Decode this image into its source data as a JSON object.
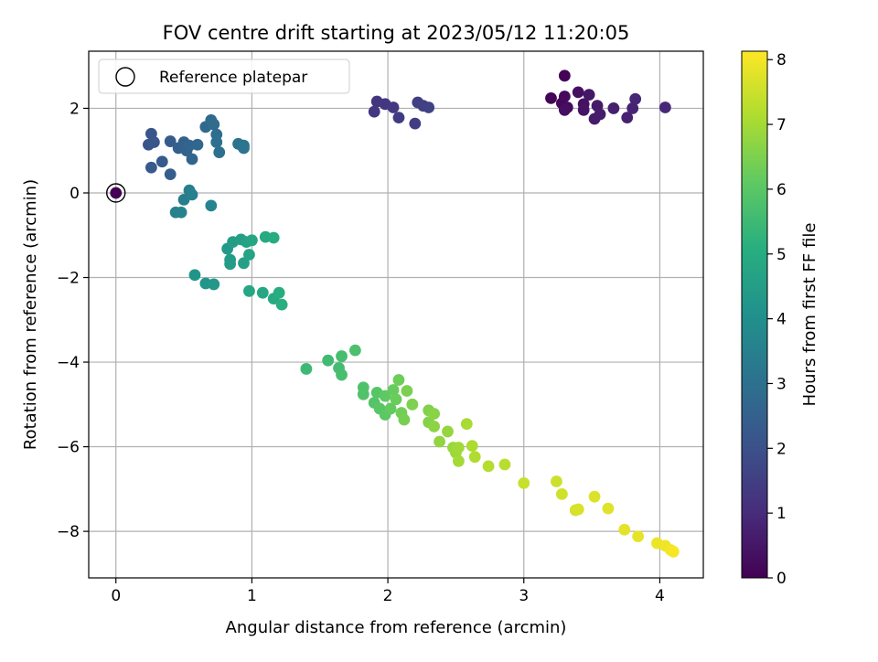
{
  "chart_data": {
    "type": "scatter",
    "title": "FOV centre drift starting at 2023/05/12 11:20:05",
    "xlabel": "Angular distance from reference (arcmin)",
    "ylabel": "Rotation from reference (arcmin)",
    "xlim": [
      -0.2,
      4.32
    ],
    "ylim": [
      -9.1,
      3.35
    ],
    "xticks": [
      "0",
      "1",
      "2",
      "3",
      "4"
    ],
    "yticks": [
      "2",
      "0",
      "−2",
      "−4",
      "−6",
      "−8"
    ],
    "grid": true,
    "legend": {
      "placement": "top-left",
      "entries": [
        "Reference platepar"
      ]
    },
    "colorbar": {
      "label": "Hours from first FF file",
      "range": [
        0,
        8.13
      ],
      "ticks": [
        "0",
        "1",
        "2",
        "3",
        "4",
        "5",
        "6",
        "7",
        "8"
      ],
      "colormap": "viridis"
    },
    "reference_point": {
      "x": 0,
      "y": 0
    },
    "points": [
      [
        3.3,
        2.77,
        0.05
      ],
      [
        3.2,
        2.24,
        0.1
      ],
      [
        3.28,
        2.12,
        0.15
      ],
      [
        3.3,
        2.28,
        0.2
      ],
      [
        3.32,
        2.02,
        0.25
      ],
      [
        3.3,
        1.96,
        0.3
      ],
      [
        3.4,
        2.38,
        0.35
      ],
      [
        3.44,
        2.1,
        0.4
      ],
      [
        3.44,
        1.96,
        0.45
      ],
      [
        3.48,
        2.32,
        0.5
      ],
      [
        3.54,
        2.06,
        0.55
      ],
      [
        3.52,
        1.75,
        0.6
      ],
      [
        3.56,
        1.86,
        0.65
      ],
      [
        3.66,
        2.0,
        0.7
      ],
      [
        3.76,
        1.78,
        0.75
      ],
      [
        3.8,
        2.0,
        0.8
      ],
      [
        3.82,
        2.22,
        0.85
      ],
      [
        4.04,
        2.02,
        0.9
      ],
      [
        1.92,
        2.16,
        1.2
      ],
      [
        1.9,
        1.92,
        1.25
      ],
      [
        1.98,
        2.1,
        1.3
      ],
      [
        2.04,
        2.02,
        1.35
      ],
      [
        2.08,
        1.78,
        1.4
      ],
      [
        2.2,
        1.64,
        1.45
      ],
      [
        2.22,
        2.14,
        1.5
      ],
      [
        2.26,
        2.06,
        1.55
      ],
      [
        2.3,
        2.02,
        1.6
      ],
      [
        0.24,
        1.14,
        2.1
      ],
      [
        0.26,
        1.4,
        2.15
      ],
      [
        0.28,
        1.2,
        2.2
      ],
      [
        0.26,
        0.6,
        2.25
      ],
      [
        0.34,
        0.74,
        2.3
      ],
      [
        0.4,
        1.22,
        2.35
      ],
      [
        0.4,
        0.44,
        2.4
      ],
      [
        0.46,
        1.06,
        2.45
      ],
      [
        0.5,
        1.2,
        2.5
      ],
      [
        0.52,
        1.0,
        2.55
      ],
      [
        0.54,
        1.12,
        2.6
      ],
      [
        0.56,
        0.8,
        2.65
      ],
      [
        0.6,
        1.14,
        2.7
      ],
      [
        0.66,
        1.56,
        2.75
      ],
      [
        0.7,
        1.72,
        2.8
      ],
      [
        0.72,
        1.62,
        2.85
      ],
      [
        0.74,
        1.38,
        2.9
      ],
      [
        0.74,
        1.2,
        2.95
      ],
      [
        0.76,
        0.96,
        3.0
      ],
      [
        0.9,
        1.16,
        3.05
      ],
      [
        0.94,
        1.12,
        3.1
      ],
      [
        0.94,
        1.06,
        3.15
      ],
      [
        0.5,
        -0.16,
        3.4
      ],
      [
        0.54,
        0.06,
        3.45
      ],
      [
        0.56,
        -0.04,
        3.5
      ],
      [
        0.44,
        -0.46,
        3.55
      ],
      [
        0.48,
        -0.46,
        3.6
      ],
      [
        0.7,
        -0.3,
        3.65
      ],
      [
        0.58,
        -1.94,
        4.2
      ],
      [
        0.66,
        -2.14,
        4.25
      ],
      [
        0.72,
        -2.16,
        4.3
      ],
      [
        0.82,
        -1.32,
        4.35
      ],
      [
        0.84,
        -1.58,
        4.4
      ],
      [
        0.84,
        -1.68,
        4.45
      ],
      [
        0.86,
        -1.16,
        4.5
      ],
      [
        0.92,
        -1.1,
        4.55
      ],
      [
        0.94,
        -1.66,
        4.6
      ],
      [
        0.96,
        -1.16,
        4.65
      ],
      [
        0.98,
        -1.46,
        4.7
      ],
      [
        1.0,
        -1.12,
        4.75
      ],
      [
        0.98,
        -2.32,
        4.8
      ],
      [
        1.08,
        -2.36,
        4.85
      ],
      [
        1.1,
        -1.04,
        4.9
      ],
      [
        1.16,
        -2.5,
        4.95
      ],
      [
        1.16,
        -1.06,
        5.0
      ],
      [
        1.2,
        -2.36,
        5.05
      ],
      [
        1.22,
        -2.64,
        5.1
      ],
      [
        1.4,
        -4.16,
        5.5
      ],
      [
        1.56,
        -3.96,
        5.55
      ],
      [
        1.64,
        -4.14,
        5.6
      ],
      [
        1.66,
        -3.86,
        5.65
      ],
      [
        1.66,
        -4.3,
        5.7
      ],
      [
        1.76,
        -3.72,
        5.75
      ],
      [
        1.82,
        -4.6,
        5.8
      ],
      [
        1.82,
        -4.76,
        5.85
      ],
      [
        1.9,
        -4.96,
        5.9
      ],
      [
        1.92,
        -4.72,
        5.95
      ],
      [
        1.94,
        -5.1,
        6.0
      ],
      [
        1.98,
        -5.24,
        6.05
      ],
      [
        1.98,
        -4.8,
        6.1
      ],
      [
        2.02,
        -5.1,
        6.15
      ],
      [
        2.04,
        -4.66,
        6.2
      ],
      [
        2.06,
        -4.88,
        6.25
      ],
      [
        2.08,
        -4.42,
        6.3
      ],
      [
        2.1,
        -5.2,
        6.35
      ],
      [
        2.12,
        -5.36,
        6.4
      ],
      [
        2.14,
        -4.68,
        6.45
      ],
      [
        2.18,
        -5.0,
        6.5
      ],
      [
        2.3,
        -5.14,
        6.55
      ],
      [
        2.3,
        -5.42,
        6.6
      ],
      [
        2.34,
        -5.22,
        6.65
      ],
      [
        2.34,
        -5.52,
        6.7
      ],
      [
        2.38,
        -5.88,
        6.75
      ],
      [
        2.44,
        -5.64,
        6.8
      ],
      [
        2.48,
        -6.02,
        6.85
      ],
      [
        2.5,
        -6.14,
        6.9
      ],
      [
        2.52,
        -6.02,
        6.95
      ],
      [
        2.52,
        -6.34,
        7.0
      ],
      [
        2.58,
        -5.46,
        7.05
      ],
      [
        2.62,
        -5.98,
        7.1
      ],
      [
        2.64,
        -6.24,
        7.15
      ],
      [
        2.74,
        -6.46,
        7.2
      ],
      [
        2.86,
        -6.42,
        7.25
      ],
      [
        3.0,
        -6.86,
        7.45
      ],
      [
        3.24,
        -6.82,
        7.5
      ],
      [
        3.28,
        -7.12,
        7.55
      ],
      [
        3.38,
        -7.5,
        7.6
      ],
      [
        3.4,
        -7.48,
        7.65
      ],
      [
        3.52,
        -7.18,
        7.7
      ],
      [
        3.62,
        -7.46,
        7.75
      ],
      [
        3.74,
        -7.96,
        7.8
      ],
      [
        3.84,
        -8.12,
        7.85
      ],
      [
        3.98,
        -8.28,
        7.9
      ],
      [
        4.04,
        -8.34,
        7.95
      ],
      [
        4.08,
        -8.44,
        8.0
      ],
      [
        4.1,
        -8.48,
        8.05
      ]
    ]
  }
}
